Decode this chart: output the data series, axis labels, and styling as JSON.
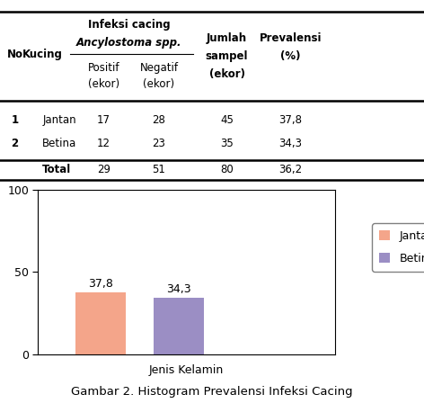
{
  "categories": [
    "Jantan",
    "Betina"
  ],
  "values": [
    37.8,
    34.3
  ],
  "bar_colors": [
    "#F4A58A",
    "#9B8EC4"
  ],
  "bar_labels": [
    "37,8",
    "34,3"
  ],
  "legend_labels": [
    "Jantan",
    "Betina"
  ],
  "xlabel": "Jenis Kelamin",
  "ylim": [
    0,
    100
  ],
  "yticks": [
    0,
    50,
    100
  ],
  "caption": "Gambar 2. Histogram Prevalensi Infeksi Cacing",
  "table_data": [
    [
      "1",
      "Jantan",
      "17",
      "28",
      "45",
      "37,8"
    ],
    [
      "2",
      "Betina",
      "12",
      "23",
      "35",
      "34,3"
    ],
    [
      "",
      "Total",
      "29",
      "51",
      "80",
      "36,2"
    ]
  ],
  "background_color": "#ffffff"
}
